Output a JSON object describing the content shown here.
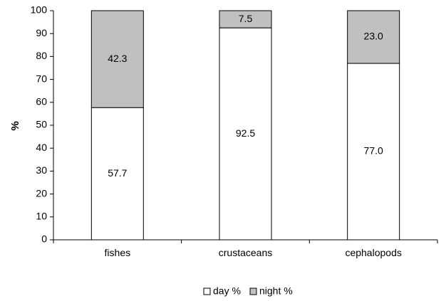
{
  "chart_data": {
    "type": "bar",
    "stacked": true,
    "categories": [
      "fishes",
      "crustaceans",
      "cephalopods"
    ],
    "series": [
      {
        "name": "day %",
        "values": [
          57.7,
          92.5,
          77.0
        ],
        "labels": [
          "57.7",
          "92.5",
          "77.0"
        ],
        "color": "#ffffff"
      },
      {
        "name": "night %",
        "values": [
          42.3,
          7.5,
          23.0
        ],
        "labels": [
          "42.3",
          "7.5",
          "23.0"
        ],
        "color": "#c0c0c0"
      }
    ],
    "ylabel": "%",
    "ylim": [
      0,
      100
    ],
    "yticks": [
      0,
      10,
      20,
      30,
      40,
      50,
      60,
      70,
      80,
      90,
      100
    ],
    "grid": false,
    "legend_position": "bottom"
  }
}
